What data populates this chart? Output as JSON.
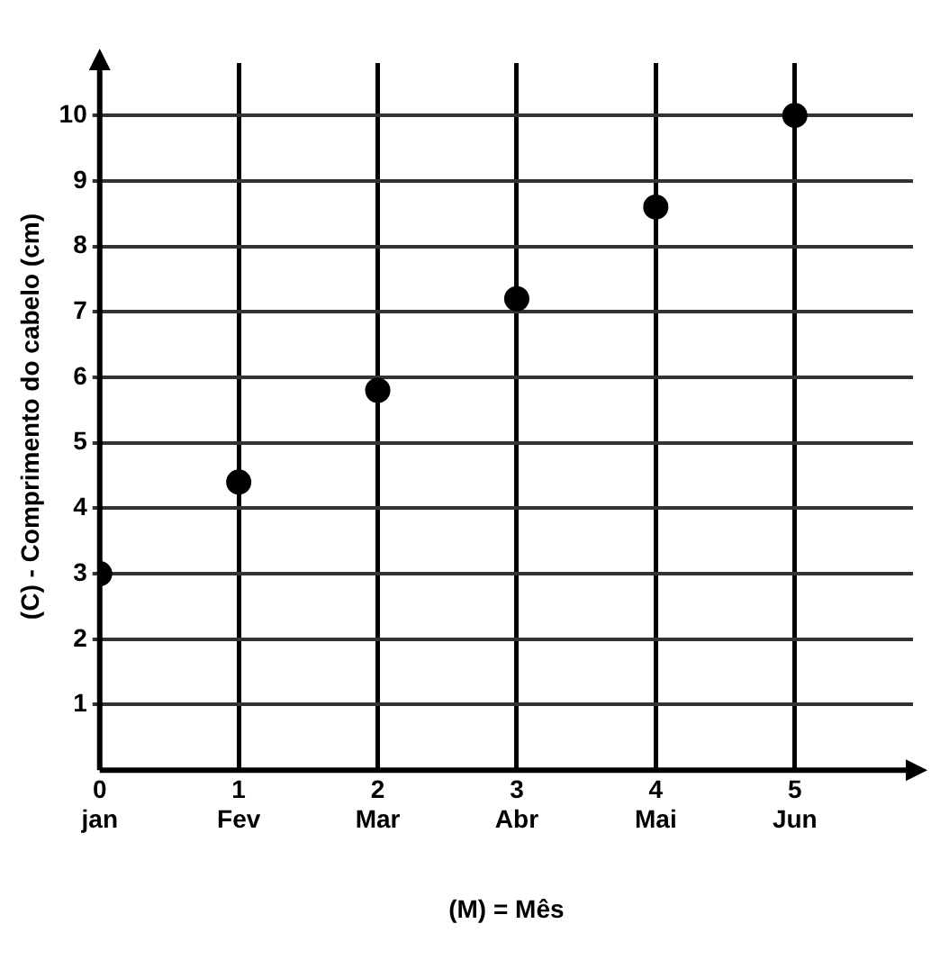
{
  "chart_data": {
    "type": "scatter",
    "xlabel": "(M) = Mês",
    "ylabel": "(C) - Comprimento do cabelo (cm)",
    "x": [
      0,
      1,
      2,
      3,
      4,
      5
    ],
    "series": [
      {
        "color": "#000000",
        "values": [
          3,
          4.4,
          5.8,
          7.2,
          8.6,
          10
        ]
      }
    ],
    "xlim": [
      0,
      5.85
    ],
    "ylim": [
      0,
      10.8
    ],
    "xticks": [
      {
        "value": 0,
        "label": "0\njan"
      },
      {
        "value": 1,
        "label": "1\nFev"
      },
      {
        "value": 2,
        "label": "2\nMar"
      },
      {
        "value": 3,
        "label": "3\nAbr"
      },
      {
        "value": 4,
        "label": "4\nMai"
      },
      {
        "value": 5,
        "label": "5\nJun"
      }
    ],
    "yticks": [
      1,
      2,
      3,
      4,
      5,
      6,
      7,
      8,
      9,
      10
    ],
    "grid": true,
    "legend": false,
    "marker": "circle"
  }
}
